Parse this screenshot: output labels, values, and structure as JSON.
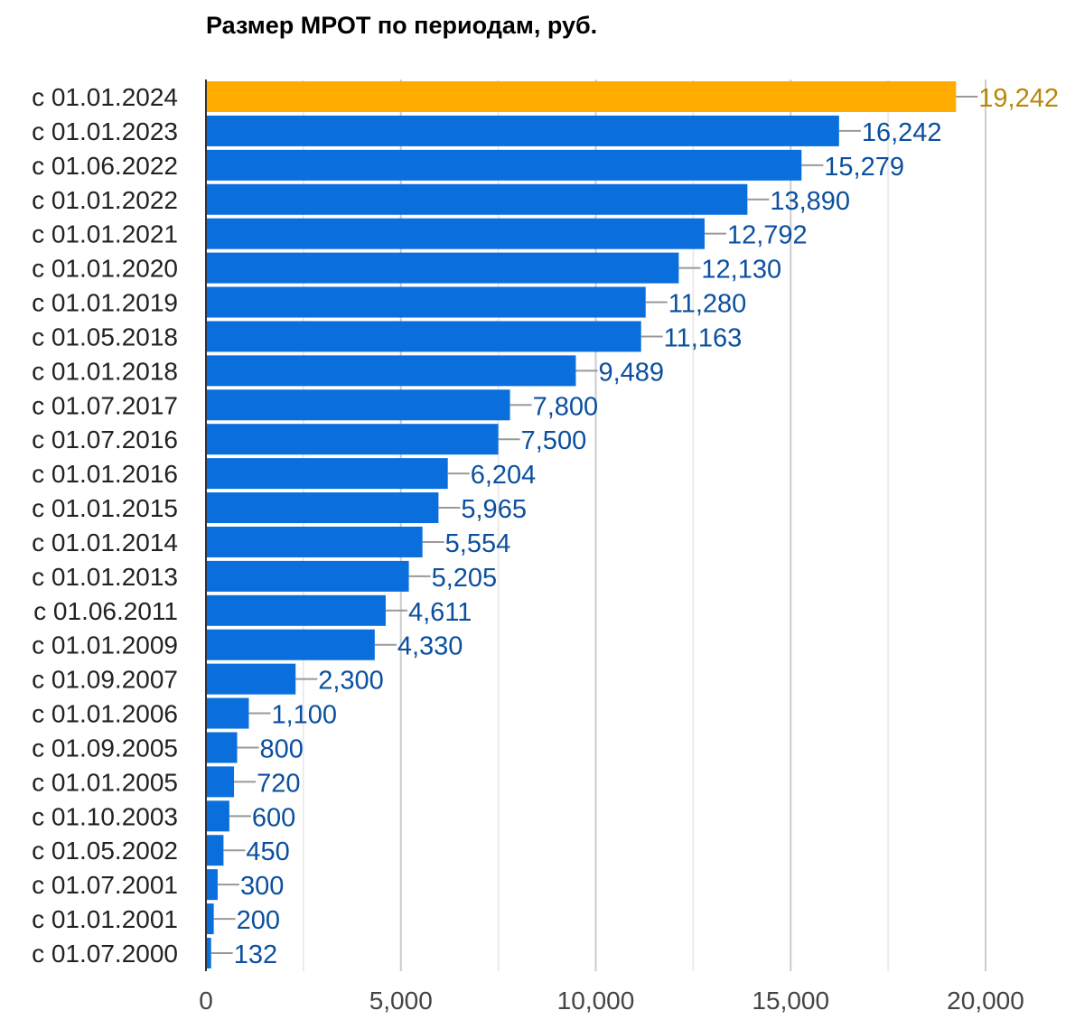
{
  "chart_data": {
    "type": "bar",
    "orientation": "horizontal",
    "title": "Размер МРОТ по периодам, руб.",
    "xlabel": "",
    "ylabel": "",
    "xlim": [
      0,
      20000
    ],
    "x_ticks": [
      "0",
      "5,000",
      "10,000",
      "15,000",
      "20,000"
    ],
    "grid": true,
    "legend": "none",
    "colors": {
      "default": "#0a6fdc",
      "highlight": "#ffab00",
      "default_label": "#0b4f9e",
      "highlight_label": "#b8860b"
    },
    "categories": [
      "с 01.01.2024",
      "с 01.01.2023",
      "с 01.06.2022",
      "с 01.01.2022",
      "с 01.01.2021",
      "с 01.01.2020",
      "с 01.01.2019",
      "с 01.05.2018",
      "с 01.01.2018",
      "с 01.07.2017",
      "с 01.07.2016",
      "с 01.01.2016",
      "с 01.01.2015",
      "с 01.01.2014",
      "с 01.01.2013",
      "с 01.06.2011",
      "с 01.01.2009",
      "с 01.09.2007",
      "с 01.01.2006",
      "с 01.09.2005",
      "с 01.01.2005",
      "с 01.10.2003",
      "с 01.05.2002",
      "с 01.07.2001",
      "с 01.01.2001",
      "с 01.07.2000"
    ],
    "values": [
      19242,
      16242,
      15279,
      13890,
      12792,
      12130,
      11280,
      11163,
      9489,
      7800,
      7500,
      6204,
      5965,
      5554,
      5205,
      4611,
      4330,
      2300,
      1100,
      800,
      720,
      600,
      450,
      300,
      200,
      132
    ],
    "data_labels": [
      "19,242",
      "16,242",
      "15,279",
      "13,890",
      "12,792",
      "12,130",
      "11,280",
      "11,163",
      "9,489",
      "7,800",
      "7,500",
      "6,204",
      "5,965",
      "5,554",
      "5,205",
      "4,611",
      "4,330",
      "2,300",
      "1,100",
      "800",
      "720",
      "600",
      "450",
      "300",
      "200",
      "132"
    ],
    "highlighted_index": 0
  }
}
